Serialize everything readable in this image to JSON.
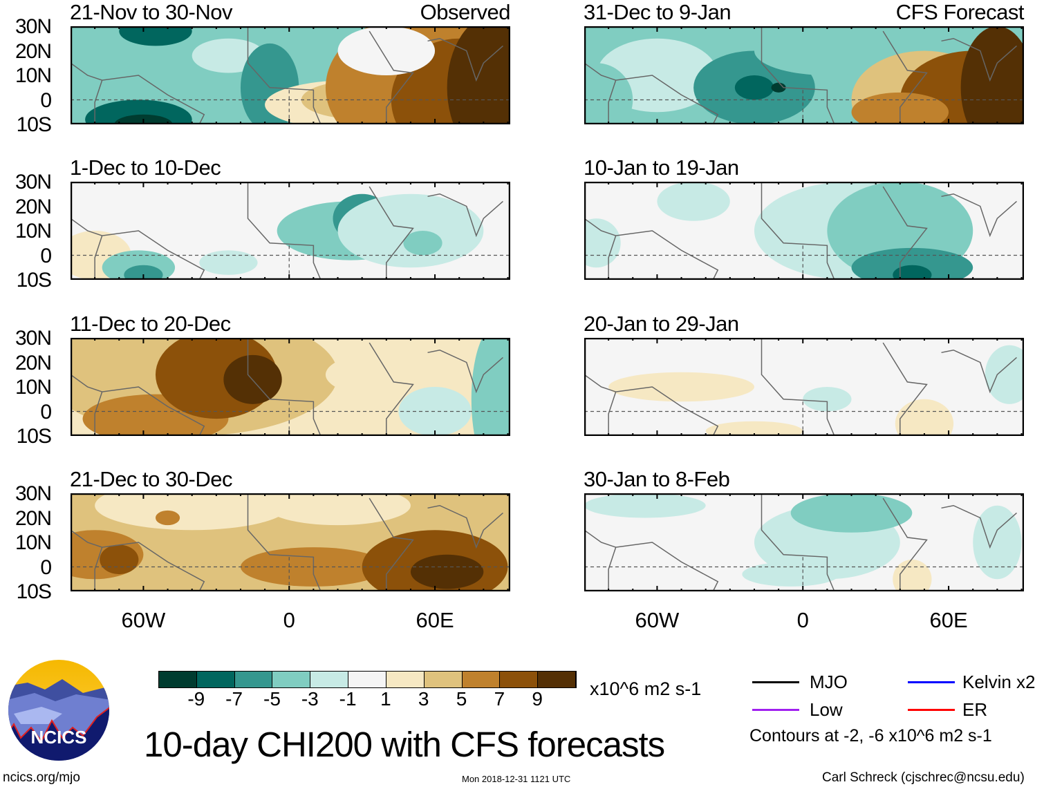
{
  "title": "10-day CHI200 with CFS forecasts",
  "columns": [
    {
      "label": "Observed",
      "panels": [
        {
          "title": "21-Nov to 30-Nov",
          "base": 3,
          "blobs": [
            [
              -55,
              28,
              15,
              6,
              1
            ],
            [
              -62,
              -8,
              22,
              8,
              1
            ],
            [
              -60,
              -10,
              12,
              4,
              0
            ],
            [
              -25,
              18,
              15,
              7,
              4
            ],
            [
              -8,
              5,
              12,
              18,
              2
            ],
            [
              25,
              -2,
              35,
              10,
              6
            ],
            [
              30,
              0,
              25,
              8,
              7
            ],
            [
              55,
              5,
              40,
              30,
              8
            ],
            [
              70,
              0,
              28,
              25,
              9
            ],
            [
              85,
              5,
              20,
              30,
              10
            ],
            [
              40,
              20,
              20,
              10,
              5
            ]
          ]
        },
        {
          "title": "1-Dec to 10-Dec",
          "base": 5,
          "blobs": [
            [
              -80,
              0,
              15,
              10,
              6
            ],
            [
              -62,
              -5,
              15,
              7,
              3
            ],
            [
              -60,
              -8,
              8,
              4,
              2
            ],
            [
              -25,
              -3,
              12,
              5,
              4
            ],
            [
              25,
              10,
              30,
              12,
              3
            ],
            [
              30,
              15,
              12,
              10,
              2
            ],
            [
              50,
              10,
              30,
              15,
              4
            ],
            [
              55,
              5,
              8,
              5,
              3
            ]
          ]
        },
        {
          "title": "11-Dec to 20-Dec",
          "base": 6,
          "blobs": [
            [
              -40,
              15,
              60,
              25,
              7
            ],
            [
              -55,
              -3,
              30,
              10,
              8
            ],
            [
              -30,
              15,
              25,
              18,
              9
            ],
            [
              -15,
              13,
              12,
              10,
              10
            ],
            [
              45,
              15,
              30,
              10,
              6
            ],
            [
              60,
              0,
              15,
              10,
              4
            ],
            [
              85,
              5,
              10,
              30,
              3
            ]
          ]
        },
        {
          "title": "21-Dec to 30-Dec",
          "base": 7,
          "blobs": [
            [
              -40,
              25,
              40,
              10,
              6
            ],
            [
              -80,
              5,
              20,
              10,
              8
            ],
            [
              -70,
              3,
              8,
              6,
              9
            ],
            [
              -50,
              20,
              5,
              3,
              8
            ],
            [
              10,
              0,
              30,
              8,
              8
            ],
            [
              60,
              0,
              30,
              15,
              9
            ],
            [
              65,
              -2,
              15,
              7,
              10
            ],
            [
              20,
              25,
              30,
              8,
              6
            ]
          ]
        }
      ]
    },
    {
      "label": "CFS Forecast",
      "panels": [
        {
          "title": "31-Dec to 9-Jan",
          "base": 3,
          "blobs": [
            [
              -60,
              10,
              25,
              15,
              4
            ],
            [
              -85,
              0,
              15,
              15,
              3
            ],
            [
              -20,
              5,
              25,
              15,
              2
            ],
            [
              -20,
              5,
              8,
              5,
              1
            ],
            [
              -10,
              5,
              3,
              2,
              0
            ],
            [
              10,
              20,
              30,
              10,
              3
            ],
            [
              50,
              0,
              30,
              20,
              7
            ],
            [
              70,
              0,
              30,
              20,
              9
            ],
            [
              80,
              5,
              15,
              25,
              10
            ],
            [
              40,
              -5,
              20,
              8,
              8
            ]
          ]
        },
        {
          "title": "10-Jan to 19-Jan",
          "base": 5,
          "blobs": [
            [
              20,
              10,
              40,
              20,
              4
            ],
            [
              40,
              10,
              30,
              20,
              3
            ],
            [
              45,
              -5,
              25,
              8,
              2
            ],
            [
              45,
              -8,
              8,
              4,
              1
            ],
            [
              -45,
              22,
              15,
              8,
              4
            ],
            [
              -85,
              5,
              10,
              10,
              4
            ]
          ]
        },
        {
          "title": "20-Jan to 29-Jan",
          "base": 5,
          "blobs": [
            [
              -50,
              10,
              30,
              6,
              6
            ],
            [
              -20,
              -8,
              20,
              4,
              6
            ],
            [
              50,
              -5,
              12,
              10,
              6
            ],
            [
              85,
              15,
              10,
              12,
              4
            ],
            [
              10,
              5,
              10,
              5,
              4
            ]
          ]
        },
        {
          "title": "30-Jan to 8-Feb",
          "base": 5,
          "blobs": [
            [
              10,
              10,
              30,
              15,
              4
            ],
            [
              20,
              22,
              25,
              8,
              3
            ],
            [
              -5,
              -3,
              20,
              5,
              4
            ],
            [
              80,
              10,
              10,
              15,
              4
            ],
            [
              45,
              -5,
              8,
              8,
              6
            ],
            [
              -65,
              25,
              25,
              5,
              4
            ]
          ]
        }
      ]
    }
  ],
  "lat_labels": [
    "30N",
    "20N",
    "10N",
    "0",
    "10S"
  ],
  "lon_labels": [
    "60W",
    "0",
    "60E"
  ],
  "colorbar": {
    "colors": [
      "#003c30",
      "#01665e",
      "#35978f",
      "#80cdc1",
      "#c7eae5",
      "#f5f5f5",
      "#f6e8c3",
      "#dfc27d",
      "#bf812d",
      "#8c510a",
      "#543005"
    ],
    "labels": [
      "-9",
      "-7",
      "-5",
      "-3",
      "-1",
      "1",
      "3",
      "5",
      "7",
      "9"
    ],
    "units": "x10^6 m2 s-1"
  },
  "legend": {
    "items": [
      {
        "label": "MJO",
        "color": "#000000"
      },
      {
        "label": "Kelvin x2",
        "color": "#0000ff"
      },
      {
        "label": "Low",
        "color": "#a020f0"
      },
      {
        "label": "ER",
        "color": "#ff0000"
      }
    ],
    "note": "Contours at -2, -6 x10^6 m2 s-1"
  },
  "logo": "NCICS",
  "footer": {
    "left": "ncics.org/mjo",
    "center": "Mon 2018-12-31 1121 UTC",
    "right": "Carl Schreck (cjschrec@ncsu.edu)"
  }
}
